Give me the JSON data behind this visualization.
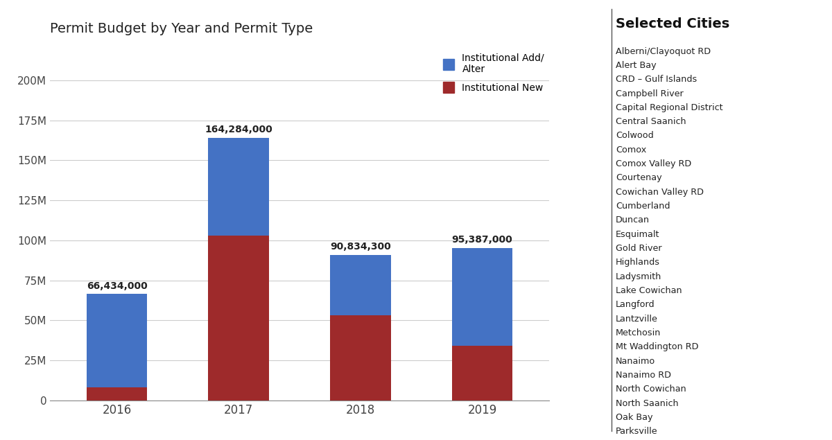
{
  "title": "Permit Budget by Year and Permit Type",
  "years": [
    "2016",
    "2017",
    "2018",
    "2019"
  ],
  "institutional_new": [
    8000000,
    103000000,
    53000000,
    34000000
  ],
  "institutional_add_alter": [
    58434000,
    61284000,
    37834300,
    61387000
  ],
  "totals_raw": [
    66434000,
    164284000,
    90834300,
    95387000
  ],
  "totals": [
    "66,434,000",
    "164,284,000",
    "90,834,300",
    "95,387,000"
  ],
  "color_add_alter": "#4472C4",
  "color_new": "#9E2A2B",
  "ylim": [
    0,
    220000000
  ],
  "yticks": [
    0,
    25000000,
    50000000,
    75000000,
    100000000,
    125000000,
    150000000,
    175000000,
    200000000
  ],
  "ytick_labels": [
    "0",
    "25M",
    "50M",
    "75M",
    "100M",
    "125M",
    "150M",
    "175M",
    "200M"
  ],
  "legend_add_alter": "Institutional Add/\nAlter",
  "legend_new": "Institutional New",
  "selected_cities_title": "Selected Cities",
  "selected_cities": [
    "Alberni/Clayoquot RD",
    "Alert Bay",
    "CRD – Gulf Islands",
    "Campbell River",
    "Capital Regional District",
    "Central Saanich",
    "Colwood",
    "Comox",
    "Comox Valley RD",
    "Courtenay",
    "Cowichan Valley RD",
    "Cumberland",
    "Duncan",
    "Esquimalt",
    "Gold River",
    "Highlands",
    "Ladysmith",
    "Lake Cowichan",
    "Langford",
    "Lantzville",
    "Metchosin",
    "Mt Waddington RD",
    "Nanaimo",
    "Nanaimo RD",
    "North Cowichan",
    "North Saanich",
    "Oak Bay",
    "Parksville"
  ],
  "bg_color": "#FFFFFF",
  "bar_width": 0.5
}
